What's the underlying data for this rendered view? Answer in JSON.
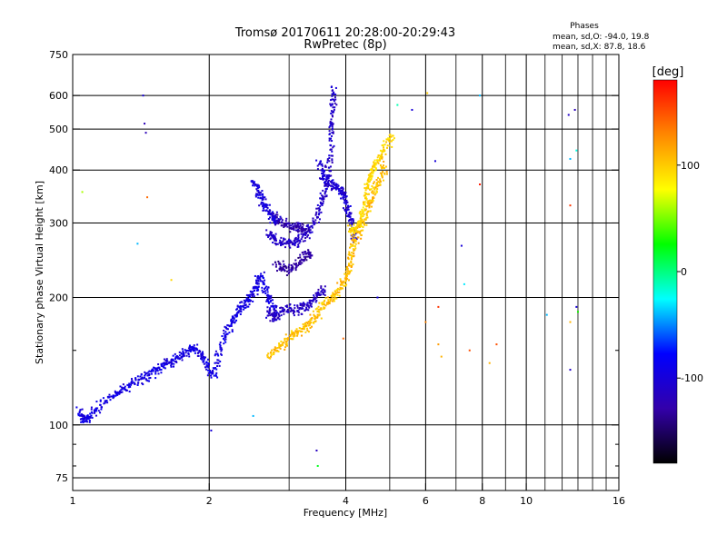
{
  "chart_data": {
    "type": "scatter",
    "title": "Tromsø 20170611 20:28:00-20:29:43",
    "subtitle": "RwPretec (8p)",
    "xlabel": "Frequency [MHz]",
    "ylabel": "Stationary phase Virtual Height [km]",
    "x_scale": "log",
    "y_scale": "log",
    "xlim": [
      1,
      16
    ],
    "ylim": [
      70,
      750
    ],
    "x_ticks": [
      1,
      2,
      4,
      6,
      8,
      10,
      16
    ],
    "x_tick_labels": [
      "1",
      "2",
      "4",
      "6",
      "8",
      "10",
      "16"
    ],
    "x_minor_ticks": [
      3,
      5,
      7,
      9,
      11,
      12,
      13,
      14,
      15
    ],
    "y_ticks": [
      75,
      100,
      200,
      300,
      400,
      500,
      600,
      750
    ],
    "y_tick_labels": [
      "75",
      "100",
      "200",
      "300",
      "400",
      "500",
      "600",
      "750"
    ],
    "y_minor_ticks": [
      80,
      90,
      150
    ],
    "grid": true,
    "phase_box": {
      "title": "Phases",
      "line1": "mean, sd,O: -94.0, 19.8",
      "line2": "mean, sd,X:  87.8, 18.6"
    },
    "colorbar": {
      "label": "[deg]",
      "range": [
        -180,
        180
      ],
      "ticks": [
        100,
        0,
        -100
      ],
      "tick_labels": [
        "100",
        "0",
        "-100"
      ],
      "stops": [
        "#ff0000",
        "#ff8800",
        "#ffff00",
        "#00ff00",
        "#00ffff",
        "#0000ff",
        "#3300aa",
        "#000000"
      ]
    },
    "traces": [
      {
        "phase": -95,
        "points": [
          [
            1.03,
            108
          ],
          [
            1.05,
            104
          ],
          [
            1.07,
            102
          ],
          [
            1.1,
            106
          ],
          [
            1.13,
            110
          ],
          [
            1.2,
            115
          ],
          [
            1.25,
            119
          ],
          [
            1.3,
            122
          ],
          [
            1.35,
            125
          ],
          [
            1.4,
            128
          ],
          [
            1.45,
            130
          ],
          [
            1.5,
            133
          ],
          [
            1.55,
            137
          ],
          [
            1.6,
            140
          ],
          [
            1.65,
            140
          ],
          [
            1.7,
            144
          ],
          [
            1.75,
            146
          ],
          [
            1.8,
            150
          ],
          [
            1.85,
            152
          ],
          [
            1.9,
            148
          ],
          [
            1.95,
            142
          ],
          [
            2.0,
            135
          ],
          [
            2.05,
            132
          ],
          [
            2.1,
            145
          ],
          [
            2.15,
            160
          ],
          [
            2.2,
            168
          ],
          [
            2.25,
            175
          ],
          [
            2.3,
            182
          ],
          [
            2.35,
            190
          ],
          [
            2.4,
            195
          ],
          [
            2.45,
            198
          ],
          [
            2.5,
            205
          ],
          [
            2.55,
            215
          ],
          [
            2.6,
            225
          ],
          [
            2.65,
            210
          ],
          [
            2.7,
            200
          ],
          [
            2.75,
            190
          ],
          [
            2.8,
            185
          ]
        ]
      },
      {
        "phase": -100,
        "points": [
          [
            2.5,
            380
          ],
          [
            2.55,
            360
          ],
          [
            2.6,
            345
          ],
          [
            2.65,
            330
          ],
          [
            2.7,
            320
          ],
          [
            2.75,
            310
          ],
          [
            2.8,
            305
          ],
          [
            2.85,
            300
          ]
        ]
      },
      {
        "phase": -110,
        "points": [
          [
            2.7,
            285
          ],
          [
            2.75,
            278
          ],
          [
            2.8,
            272
          ],
          [
            2.9,
            268
          ],
          [
            3.0,
            268
          ],
          [
            3.1,
            270
          ],
          [
            3.2,
            275
          ],
          [
            3.3,
            285
          ],
          [
            3.4,
            300
          ],
          [
            3.5,
            320
          ],
          [
            3.55,
            340
          ],
          [
            3.6,
            360
          ],
          [
            3.65,
            390
          ],
          [
            3.7,
            430
          ],
          [
            3.72,
            480
          ],
          [
            3.74,
            530
          ],
          [
            3.76,
            580
          ],
          [
            3.78,
            630
          ]
        ]
      },
      {
        "phase": -105,
        "points": [
          [
            3.5,
            420
          ],
          [
            3.55,
            395
          ],
          [
            3.6,
            380
          ],
          [
            3.7,
            370
          ],
          [
            3.8,
            365
          ],
          [
            3.9,
            360
          ],
          [
            3.95,
            350
          ],
          [
            4.0,
            340
          ],
          [
            4.05,
            320
          ],
          [
            4.1,
            305
          ],
          [
            4.15,
            290
          ],
          [
            4.2,
            275
          ]
        ]
      },
      {
        "phase": -125,
        "points": [
          [
            2.8,
            310
          ],
          [
            2.9,
            300
          ],
          [
            3.0,
            295
          ],
          [
            3.1,
            292
          ],
          [
            3.15,
            298
          ],
          [
            3.2,
            290
          ],
          [
            3.3,
            285
          ]
        ]
      },
      {
        "phase": -130,
        "points": [
          [
            2.8,
            240
          ],
          [
            2.9,
            235
          ],
          [
            3.0,
            232
          ],
          [
            3.1,
            238
          ],
          [
            3.2,
            245
          ],
          [
            3.3,
            255
          ],
          [
            3.35,
            250
          ]
        ]
      },
      {
        "phase": -115,
        "points": [
          [
            2.7,
            185
          ],
          [
            2.75,
            180
          ],
          [
            2.8,
            182
          ],
          [
            2.9,
            185
          ],
          [
            3.0,
            188
          ],
          [
            3.1,
            186
          ],
          [
            3.2,
            188
          ],
          [
            3.3,
            192
          ],
          [
            3.4,
            198
          ],
          [
            3.5,
            205
          ],
          [
            3.6,
            210
          ]
        ]
      },
      {
        "phase": 105,
        "points": [
          [
            2.7,
            145
          ],
          [
            2.8,
            150
          ],
          [
            2.9,
            155
          ],
          [
            3.0,
            160
          ],
          [
            3.1,
            165
          ],
          [
            3.2,
            168
          ],
          [
            3.3,
            172
          ],
          [
            3.4,
            178
          ],
          [
            3.5,
            185
          ],
          [
            3.6,
            192
          ],
          [
            3.7,
            198
          ],
          [
            3.8,
            205
          ],
          [
            3.9,
            212
          ],
          [
            4.0,
            220
          ],
          [
            4.05,
            230
          ],
          [
            4.1,
            245
          ],
          [
            4.15,
            260
          ],
          [
            4.2,
            275
          ],
          [
            4.3,
            290
          ],
          [
            4.4,
            310
          ],
          [
            4.5,
            330
          ],
          [
            4.6,
            350
          ],
          [
            4.7,
            370
          ],
          [
            4.8,
            390
          ],
          [
            4.9,
            410
          ]
        ]
      },
      {
        "phase": 95,
        "points": [
          [
            4.1,
            290
          ],
          [
            4.15,
            285
          ],
          [
            4.2,
            292
          ],
          [
            4.3,
            300
          ],
          [
            4.35,
            310
          ],
          [
            4.4,
            330
          ],
          [
            4.45,
            350
          ],
          [
            4.5,
            370
          ],
          [
            4.55,
            390
          ],
          [
            4.6,
            405
          ],
          [
            4.7,
            420
          ],
          [
            4.8,
            440
          ],
          [
            5.0,
            470
          ],
          [
            5.05,
            480
          ]
        ]
      }
    ],
    "isolated_points": [
      {
        "x": 1.05,
        "y": 355,
        "phase": 60
      },
      {
        "x": 1.39,
        "y": 268,
        "phase": -40
      },
      {
        "x": 1.43,
        "y": 600,
        "phase": -100
      },
      {
        "x": 1.44,
        "y": 515,
        "phase": -120
      },
      {
        "x": 1.45,
        "y": 490,
        "phase": -120
      },
      {
        "x": 1.46,
        "y": 345,
        "phase": 140
      },
      {
        "x": 1.65,
        "y": 220,
        "phase": 95
      },
      {
        "x": 2.02,
        "y": 97,
        "phase": -100
      },
      {
        "x": 2.5,
        "y": 105,
        "phase": -40
      },
      {
        "x": 3.45,
        "y": 87,
        "phase": -115
      },
      {
        "x": 3.47,
        "y": 80,
        "phase": 20
      },
      {
        "x": 3.95,
        "y": 160,
        "phase": 140
      },
      {
        "x": 4.7,
        "y": 200,
        "phase": -95
      },
      {
        "x": 5.2,
        "y": 570,
        "phase": -10
      },
      {
        "x": 5.6,
        "y": 555,
        "phase": -100
      },
      {
        "x": 6.0,
        "y": 175,
        "phase": 130
      },
      {
        "x": 6.05,
        "y": 608,
        "phase": 100
      },
      {
        "x": 6.3,
        "y": 420,
        "phase": -100
      },
      {
        "x": 6.4,
        "y": 190,
        "phase": 160
      },
      {
        "x": 6.4,
        "y": 155,
        "phase": 120
      },
      {
        "x": 6.5,
        "y": 145,
        "phase": 110
      },
      {
        "x": 7.2,
        "y": 265,
        "phase": -100
      },
      {
        "x": 7.3,
        "y": 215,
        "phase": -30
      },
      {
        "x": 7.5,
        "y": 150,
        "phase": 150
      },
      {
        "x": 7.9,
        "y": 370,
        "phase": 170
      },
      {
        "x": 7.9,
        "y": 600,
        "phase": -40
      },
      {
        "x": 8.3,
        "y": 140,
        "phase": 110
      },
      {
        "x": 8.6,
        "y": 155,
        "phase": 150
      },
      {
        "x": 11.1,
        "y": 182,
        "phase": -40
      },
      {
        "x": 12.4,
        "y": 540,
        "phase": -110
      },
      {
        "x": 12.5,
        "y": 425,
        "phase": -40
      },
      {
        "x": 12.5,
        "y": 330,
        "phase": 160
      },
      {
        "x": 12.5,
        "y": 175,
        "phase": 110
      },
      {
        "x": 12.5,
        "y": 135,
        "phase": -110
      },
      {
        "x": 12.8,
        "y": 555,
        "phase": -120
      },
      {
        "x": 12.9,
        "y": 445,
        "phase": -20
      },
      {
        "x": 12.9,
        "y": 190,
        "phase": -100
      },
      {
        "x": 13.0,
        "y": 185,
        "phase": 30
      }
    ]
  }
}
